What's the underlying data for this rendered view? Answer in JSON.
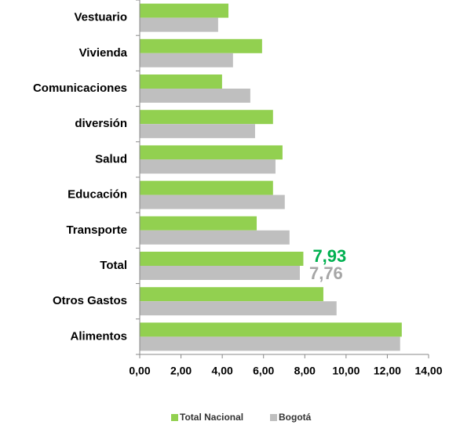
{
  "chart_data": {
    "type": "bar",
    "orientation": "horizontal",
    "categories": [
      "Vestuario",
      "Vivienda",
      "Comunicaciones",
      "diversión",
      "Salud",
      "Educación",
      "Transporte",
      "Total",
      "Otros Gastos",
      "Alimentos"
    ],
    "series": [
      {
        "name": "Total Nacional",
        "color": "#92d050",
        "values": [
          4.3,
          5.93,
          3.99,
          6.46,
          6.92,
          6.46,
          5.67,
          7.93,
          8.9,
          12.7
        ],
        "value_labels": [
          null,
          null,
          null,
          null,
          null,
          null,
          null,
          "7,93",
          null,
          null
        ],
        "label_color": "#00b050"
      },
      {
        "name": "Bogotá",
        "color": "#bfbfbf",
        "values": [
          3.8,
          4.52,
          5.36,
          5.59,
          6.58,
          7.03,
          7.26,
          7.76,
          9.54,
          12.62
        ],
        "value_labels": [
          null,
          null,
          null,
          null,
          null,
          null,
          null,
          "7,76",
          null,
          null
        ],
        "label_color": "#a6a6a6"
      }
    ],
    "xlim": [
      0,
      14
    ],
    "xticks": [
      {
        "value": 0,
        "label": "0,00"
      },
      {
        "value": 2,
        "label": "2,00"
      },
      {
        "value": 4,
        "label": "4,00"
      },
      {
        "value": 6,
        "label": "6,00"
      },
      {
        "value": 8,
        "label": "8,00"
      },
      {
        "value": 10,
        "label": "10,00"
      },
      {
        "value": 12,
        "label": "12,00"
      },
      {
        "value": 14,
        "label": "14,00"
      }
    ],
    "grid": false,
    "legend": "bottom"
  }
}
